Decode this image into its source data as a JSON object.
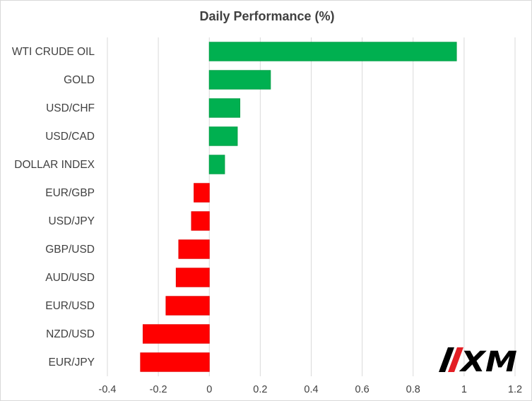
{
  "chart_data": {
    "type": "bar",
    "orientation": "horizontal",
    "title": "Daily Performance  (%)",
    "xlabel": "",
    "ylabel": "",
    "xlim": [
      -0.4,
      1.2
    ],
    "xticks": [
      -0.4,
      -0.2,
      0,
      0.2,
      0.4,
      0.6,
      0.8,
      1,
      1.2
    ],
    "xtick_labels": [
      "-0.4",
      "-0.2",
      "0",
      "0.2",
      "0.4",
      "0.6",
      "0.8",
      "1",
      "1.2"
    ],
    "grid": "vertical",
    "categories": [
      "WTI CRUDE OIL",
      "GOLD",
      "USD/CHF",
      "USD/CAD",
      "DOLLAR INDEX",
      "EUR/GBP",
      "USD/JPY",
      "GBP/USD",
      "AUD/USD",
      "EUR/USD",
      "NZD/USD",
      "EUR/JPY"
    ],
    "values": [
      0.97,
      0.24,
      0.12,
      0.11,
      0.06,
      -0.06,
      -0.07,
      -0.12,
      -0.13,
      -0.17,
      -0.26,
      -0.27
    ],
    "colors": {
      "positive": "#00b050",
      "negative": "#ff0000"
    }
  },
  "logo": {
    "text": "XM",
    "accent_color": "#e31e24",
    "text_color": "#000000"
  }
}
